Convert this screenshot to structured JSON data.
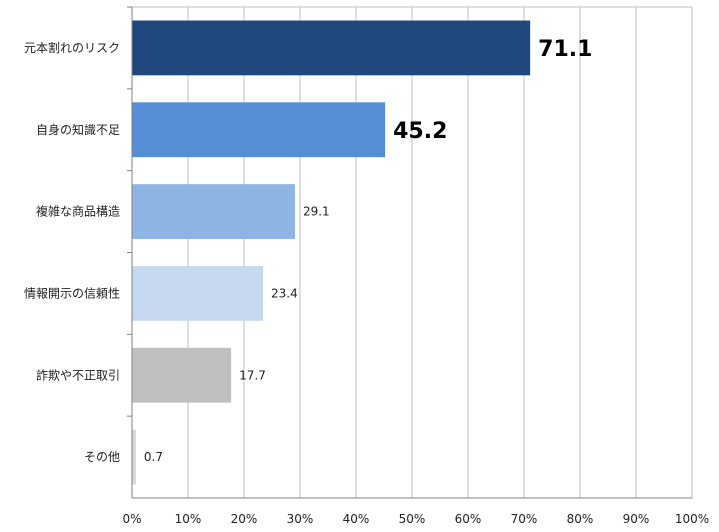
{
  "chart_data": {
    "type": "bar",
    "orientation": "horizontal",
    "categories": [
      "元本割れのリスク",
      "自身の知識不足",
      "複雑な商品構造",
      "情報開示の信頼性",
      "詐欺や不正取引",
      "その他"
    ],
    "values": [
      71.1,
      45.2,
      29.1,
      23.4,
      17.7,
      0.7
    ],
    "data_labels": [
      "71.1",
      "45.2",
      "29.1",
      "23.4",
      "17.7",
      "0.7"
    ],
    "emphasized_labels": [
      true,
      true,
      false,
      false,
      false,
      false
    ],
    "bar_colors": [
      "#1f497d",
      "#558ed5",
      "#8eb4e3",
      "#c6d9f1",
      "#bfbfbf",
      "#d9d9d9"
    ],
    "x_ticks": [
      "0%",
      "10%",
      "20%",
      "30%",
      "40%",
      "50%",
      "60%",
      "70%",
      "80%",
      "90%",
      "100%"
    ],
    "xlim": [
      0,
      100
    ],
    "gridlines": true,
    "legend": "none",
    "title": "",
    "xlabel": "",
    "ylabel": ""
  }
}
